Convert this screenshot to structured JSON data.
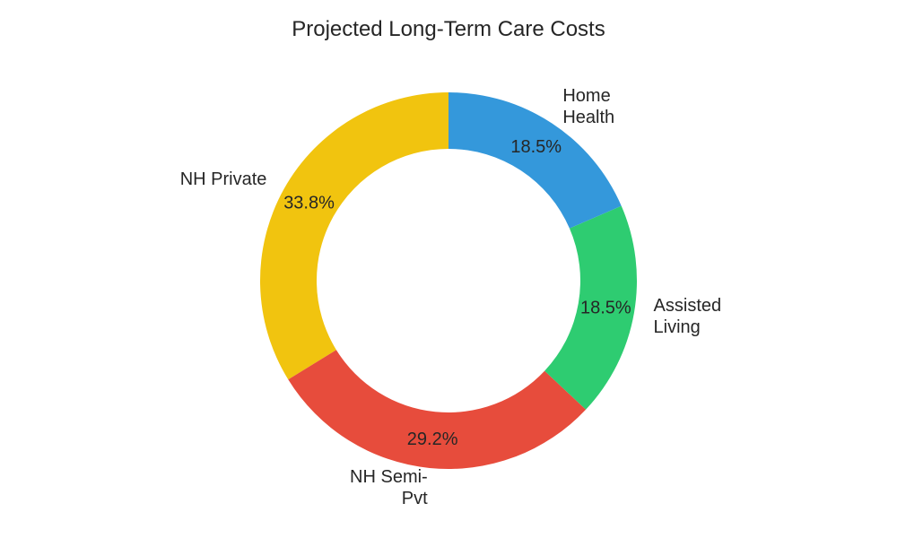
{
  "chart_data": {
    "type": "pie",
    "subtype": "donut",
    "title": "Projected Long-Term Care Costs",
    "start_angle_deg": 90,
    "direction": "counterclockwise",
    "slices": [
      {
        "label": "NH Private",
        "label_lines": [
          "NH Private"
        ],
        "value": 33.8,
        "pct_text": "33.8%",
        "color": "#f1c40f"
      },
      {
        "label": "NH Semi-Pvt",
        "label_lines": [
          "NH Semi-",
          "Pvt"
        ],
        "value": 29.2,
        "pct_text": "29.2%",
        "color": "#e74c3c"
      },
      {
        "label": "Assisted Living",
        "label_lines": [
          "Assisted",
          "Living"
        ],
        "value": 18.5,
        "pct_text": "18.5%",
        "color": "#2ecc71"
      },
      {
        "label": "Home Health",
        "label_lines": [
          "Home",
          "Health"
        ],
        "value": 18.5,
        "pct_text": "18.5%",
        "color": "#3498db"
      }
    ]
  }
}
